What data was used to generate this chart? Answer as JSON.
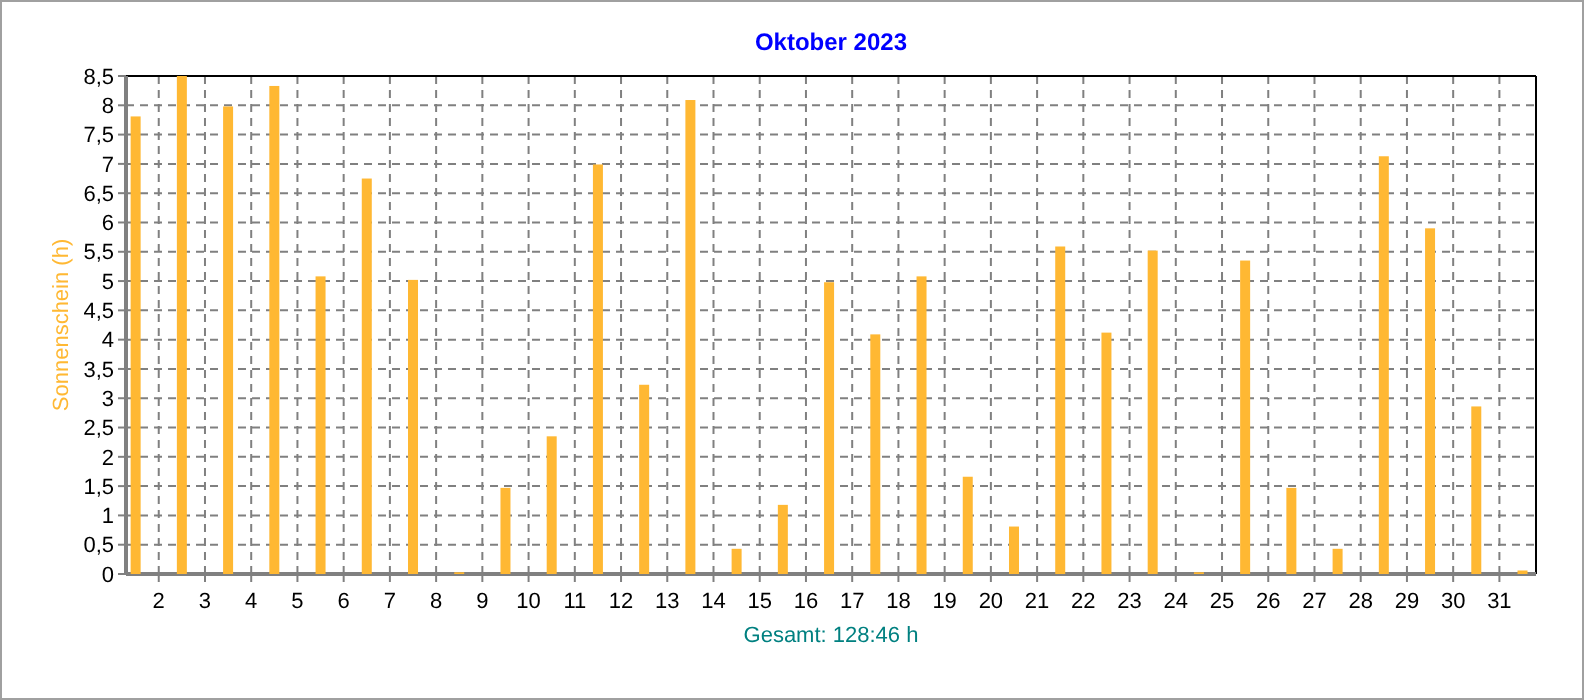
{
  "chart_data": {
    "type": "bar",
    "title": "Oktober 2023",
    "ylabel": "Sonnenschein  (h)",
    "annotations": [
      "Gesamt: 128:46 h"
    ],
    "x": [
      "2023-10-01T12:00",
      "2023-10-02T12:00",
      "2023-10-03T12:00",
      "2023-10-04T12:00",
      "2023-10-05T12:00",
      "2023-10-06T12:00",
      "2023-10-07T12:00",
      "2023-10-08T12:00",
      "2023-10-09T12:00",
      "2023-10-10T12:00",
      "2023-10-11T12:00",
      "2023-10-12T12:00",
      "2023-10-13T12:00",
      "2023-10-14T12:00",
      "2023-10-15T12:00",
      "2023-10-16T12:00",
      "2023-10-17T12:00",
      "2023-10-18T12:00",
      "2023-10-19T12:00",
      "2023-10-20T12:00",
      "2023-10-21T12:00",
      "2023-10-22T12:00",
      "2023-10-23T12:00",
      "2023-10-24T12:00",
      "2023-10-25T12:00",
      "2023-10-26T12:00",
      "2023-10-27T12:00",
      "2023-10-28T12:00",
      "2023-10-29T12:00",
      "2023-10-30T12:00",
      "2023-10-31T12:00"
    ],
    "values": [
      7.81,
      8.5,
      7.98,
      8.33,
      5.08,
      6.75,
      5.02,
      0.03,
      1.47,
      2.35,
      6.99,
      3.23,
      8.09,
      0.43,
      1.18,
      4.98,
      4.09,
      5.08,
      1.66,
      0.81,
      5.59,
      4.12,
      5.52,
      0.03,
      5.35,
      1.47,
      0.43,
      7.13,
      5.9,
      2.86,
      0.06
    ],
    "color": "#ffb833",
    "xlim": [
      "2023-10-01T07:00",
      "2023-10-31T19:00"
    ],
    "xticks": [
      {
        "value": "2023-10-02",
        "label": "2"
      },
      {
        "value": "2023-10-03",
        "label": "3"
      },
      {
        "value": "2023-10-04",
        "label": "4"
      },
      {
        "value": "2023-10-05",
        "label": "5"
      },
      {
        "value": "2023-10-06",
        "label": "6"
      },
      {
        "value": "2023-10-07",
        "label": "7"
      },
      {
        "value": "2023-10-08",
        "label": "8"
      },
      {
        "value": "2023-10-09",
        "label": "9"
      },
      {
        "value": "2023-10-10",
        "label": "10"
      },
      {
        "value": "2023-10-11",
        "label": "11"
      },
      {
        "value": "2023-10-12",
        "label": "12"
      },
      {
        "value": "2023-10-13",
        "label": "13"
      },
      {
        "value": "2023-10-14",
        "label": "14"
      },
      {
        "value": "2023-10-15",
        "label": "15"
      },
      {
        "value": "2023-10-16",
        "label": "16"
      },
      {
        "value": "2023-10-17",
        "label": "17"
      },
      {
        "value": "2023-10-18",
        "label": "18"
      },
      {
        "value": "2023-10-19",
        "label": "19"
      },
      {
        "value": "2023-10-20",
        "label": "20"
      },
      {
        "value": "2023-10-21",
        "label": "21"
      },
      {
        "value": "2023-10-22",
        "label": "22"
      },
      {
        "value": "2023-10-23",
        "label": "23"
      },
      {
        "value": "2023-10-24",
        "label": "24"
      },
      {
        "value": "2023-10-25",
        "label": "25"
      },
      {
        "value": "2023-10-26",
        "label": "26"
      },
      {
        "value": "2023-10-27",
        "label": "27"
      },
      {
        "value": "2023-10-28",
        "label": "28"
      },
      {
        "value": "2023-10-29",
        "label": "29"
      },
      {
        "value": "2023-10-30",
        "label": "30"
      },
      {
        "value": "2023-10-31",
        "label": "31"
      }
    ],
    "ylim": [
      0,
      8.5
    ],
    "yticks": [
      0,
      {
        "value": 0.5,
        "label": "0,5"
      },
      1,
      {
        "value": 1.5,
        "label": "1,5"
      },
      2,
      {
        "value": 2.5,
        "label": "2,5"
      },
      3,
      {
        "value": 3.5,
        "label": "3,5"
      },
      4,
      {
        "value": 4.5,
        "label": "4,5"
      },
      5,
      {
        "value": 5.5,
        "label": "5,5"
      },
      6,
      {
        "value": 6.5,
        "label": "6,5"
      },
      7,
      {
        "value": 7.5,
        "label": "7,5"
      },
      8,
      {
        "value": 8.5,
        "label": "8,5"
      }
    ],
    "grid": true
  }
}
